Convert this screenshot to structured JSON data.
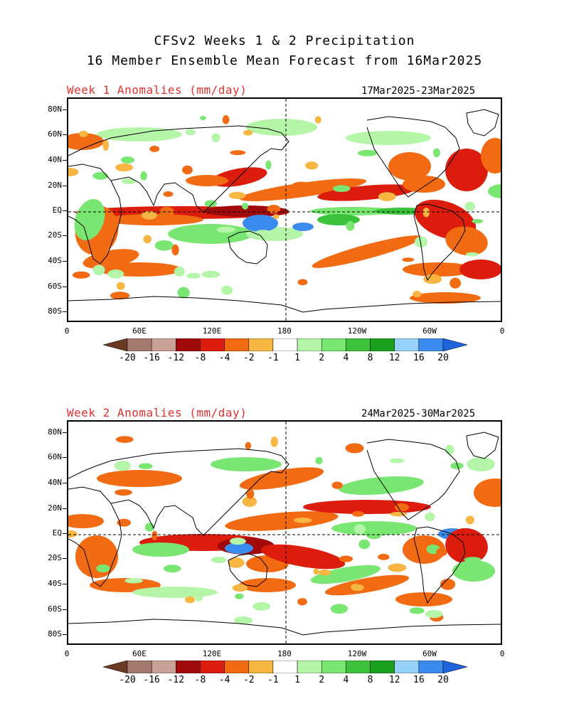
{
  "title": {
    "line1": "CFSv2 Weeks 1 & 2 Precipitation",
    "line2": "16 Member Ensemble Mean Forecast from 16Mar2025"
  },
  "panels": [
    {
      "label": "Week 1 Anomalies (mm/day)",
      "dates": "17Mar2025-23Mar2025"
    },
    {
      "label": "Week 2 Anomalies (mm/day)",
      "dates": "24Mar2025-30Mar2025"
    }
  ],
  "axes": {
    "lat_labels": [
      "80N",
      "60N",
      "40N",
      "20N",
      "EQ",
      "20S",
      "40S",
      "60S",
      "80S"
    ],
    "lon_labels": [
      "0",
      "60E",
      "120E",
      "180",
      "120W",
      "60W",
      "0"
    ]
  },
  "colorbar": {
    "labels": [
      "-20",
      "-16",
      "-12",
      "-8",
      "-4",
      "-2",
      "-1",
      "1",
      "2",
      "4",
      "8",
      "12",
      "16",
      "20"
    ],
    "colors": [
      "#6b3a22",
      "#a57a6e",
      "#c9a297",
      "#a00a0a",
      "#dc1c0c",
      "#f26b12",
      "#f7b542",
      "#ffffff",
      "#b4f5a8",
      "#78e670",
      "#3cc23a",
      "#19a01c",
      "#96d2fa",
      "#3c8cf0",
      "#1e64dc"
    ]
  }
}
